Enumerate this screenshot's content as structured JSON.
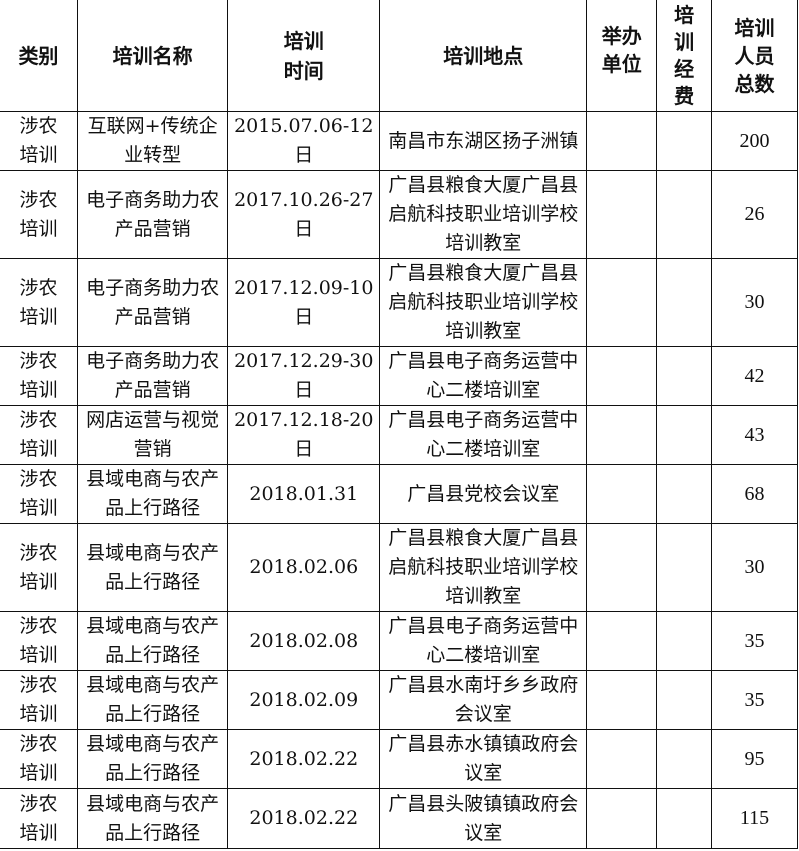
{
  "headers": [
    "类别",
    "培训名称",
    "培训时间",
    "培训地点",
    "举办单位",
    "培训经费",
    "培训人员总数"
  ],
  "rows": [
    {
      "category": "涉农培训",
      "name": "互联网+传统企业转型",
      "time": "2015.07.06-12日",
      "location": "南昌市东湖区扬子洲镇",
      "organizer": "",
      "funding": "",
      "count": "200"
    },
    {
      "category": "涉农培训",
      "name": "电子商务助力农产品营销",
      "time": "2017.10.26-27日",
      "location": "广昌县粮食大厦广昌县启航科技职业培训学校培训教室",
      "organizer": "",
      "funding": "",
      "count": "26"
    },
    {
      "category": "涉农培训",
      "name": "电子商务助力农产品营销",
      "time": "2017.12.09-10日",
      "location": "广昌县粮食大厦广昌县启航科技职业培训学校培训教室",
      "organizer": "",
      "funding": "",
      "count": "30"
    },
    {
      "category": "涉农培训",
      "name": "电子商务助力农产品营销",
      "time": "2017.12.29-30日",
      "location": "广昌县电子商务运营中心二楼培训室",
      "organizer": "",
      "funding": "",
      "count": "42"
    },
    {
      "category": "涉农培训",
      "name": "网店运营与视觉营销",
      "time": "2017.12.18-20日",
      "location": "广昌县电子商务运营中心二楼培训室",
      "organizer": "",
      "funding": "",
      "count": "43"
    },
    {
      "category": "涉农培训",
      "name": "县域电商与农产品上行路径",
      "time": "2018.01.31",
      "location": "广昌县党校会议室",
      "organizer": "",
      "funding": "",
      "count": "68"
    },
    {
      "category": "涉农培训",
      "name": "县域电商与农产品上行路径",
      "time": "2018.02.06",
      "location": "广昌县粮食大厦广昌县启航科技职业培训学校培训教室",
      "organizer": "",
      "funding": "",
      "count": "30"
    },
    {
      "category": "涉农培训",
      "name": "县域电商与农产品上行路径",
      "time": "2018.02.08",
      "location": "广昌县电子商务运营中心二楼培训室",
      "organizer": "",
      "funding": "",
      "count": "35"
    },
    {
      "category": "涉农培训",
      "name": "县域电商与农产品上行路径",
      "time": "2018.02.09",
      "location": "广昌县水南圩乡乡政府会议室",
      "organizer": "",
      "funding": "",
      "count": "35"
    },
    {
      "category": "涉农培训",
      "name": "县域电商与农产品上行路径",
      "time": "2018.02.22",
      "location": "广昌县赤水镇镇政府会议室",
      "organizer": "",
      "funding": "",
      "count": "95"
    },
    {
      "category": "涉农培训",
      "name": "县域电商与农产品上行路径",
      "time": "2018.02.22",
      "location": "广昌县头陂镇镇政府会议室",
      "organizer": "",
      "funding": "",
      "count": "115"
    }
  ]
}
